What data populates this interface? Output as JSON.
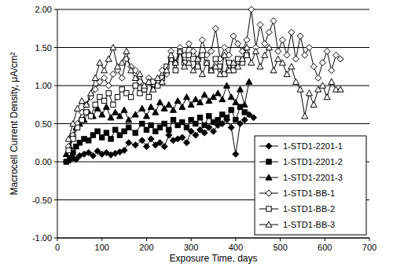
{
  "chart_data": {
    "type": "line",
    "x_label": "Exposure Time, days",
    "y_label": "Macrocell Current Density, μA/cm²",
    "xlim": [
      0,
      700
    ],
    "xticks": [
      0,
      100,
      200,
      300,
      400,
      500,
      600,
      700
    ],
    "ylim": [
      -1,
      2
    ],
    "yticks": [
      {
        "value": -1,
        "label": "-1.00"
      },
      {
        "value": -0.5,
        "label": "-0.50"
      },
      {
        "value": 0,
        "label": "0.00"
      },
      {
        "value": 0.5,
        "label": "0.50"
      },
      {
        "value": 1,
        "label": "1.00"
      },
      {
        "value": 1.5,
        "label": "1.50"
      },
      {
        "value": 2,
        "label": "2.00"
      }
    ],
    "grid": true,
    "legend": "lower right",
    "series": [
      {
        "name": "1-STD1-2201-1",
        "color": "#000000",
        "marker": "diamond",
        "line_style": "solid",
        "x": [
          20,
          28,
          35,
          42,
          50,
          60,
          70,
          80,
          90,
          100,
          110,
          120,
          130,
          140,
          150,
          160,
          175,
          190,
          200,
          210,
          220,
          230,
          240,
          250,
          260,
          270,
          280,
          290,
          300,
          310,
          320,
          330,
          340,
          350,
          360,
          370,
          380,
          390,
          400,
          410,
          420,
          430,
          440
        ],
        "values": [
          0.0,
          0.02,
          0.05,
          0.03,
          0.08,
          0.1,
          0.12,
          0.08,
          0.14,
          0.1,
          0.12,
          0.09,
          0.11,
          0.13,
          0.15,
          0.25,
          0.22,
          0.28,
          0.2,
          0.3,
          0.22,
          0.25,
          0.2,
          0.35,
          0.28,
          0.3,
          0.32,
          0.25,
          0.4,
          0.35,
          0.42,
          0.38,
          0.45,
          0.4,
          0.48,
          0.5,
          0.55,
          0.45,
          0.1,
          0.5,
          0.55,
          0.62,
          0.58
        ]
      },
      {
        "name": "1-STD1-2201-2",
        "color": "#000000",
        "marker": "square",
        "line_style": "solid",
        "x": [
          20,
          28,
          35,
          42,
          50,
          60,
          70,
          80,
          90,
          100,
          110,
          120,
          130,
          140,
          150,
          160,
          175,
          190,
          200,
          210,
          220,
          230,
          240,
          250,
          260,
          270,
          280,
          290,
          300,
          310,
          320,
          330,
          340,
          350,
          360,
          370,
          380,
          390,
          400,
          410,
          420
        ],
        "values": [
          0.0,
          0.05,
          0.12,
          0.2,
          0.25,
          0.3,
          0.28,
          0.35,
          0.4,
          0.32,
          0.38,
          0.3,
          0.42,
          0.35,
          0.4,
          0.45,
          0.38,
          0.5,
          0.42,
          0.48,
          0.4,
          0.45,
          0.5,
          0.42,
          0.55,
          0.48,
          0.52,
          0.45,
          0.55,
          0.5,
          0.58,
          0.48,
          0.6,
          0.52,
          0.55,
          0.62,
          0.58,
          0.68,
          0.55,
          0.72,
          0.65
        ]
      },
      {
        "name": "1-STD1-2201-3",
        "color": "#000000",
        "marker": "triangle",
        "line_style": "solid",
        "x": [
          20,
          28,
          35,
          42,
          50,
          60,
          70,
          80,
          90,
          100,
          110,
          120,
          130,
          140,
          150,
          160,
          175,
          190,
          200,
          210,
          220,
          230,
          240,
          250,
          260,
          270,
          280,
          290,
          300,
          310,
          320,
          330,
          340,
          350,
          360,
          370,
          380,
          390,
          400,
          410,
          420,
          430
        ],
        "values": [
          0.1,
          0.2,
          0.35,
          0.45,
          0.5,
          0.55,
          0.65,
          0.6,
          0.7,
          0.62,
          0.72,
          0.58,
          0.65,
          0.6,
          0.68,
          0.55,
          0.62,
          0.7,
          0.6,
          0.72,
          0.65,
          0.78,
          0.7,
          0.75,
          0.68,
          0.8,
          0.72,
          0.85,
          0.75,
          0.82,
          0.78,
          0.88,
          0.8,
          0.85,
          0.9,
          0.82,
          1.0,
          0.85,
          0.78,
          0.95,
          0.75,
          1.05
        ]
      },
      {
        "name": "1-STD1-BB-1",
        "color": "#000000",
        "marker": "diamond-open",
        "line_style": "solid",
        "x": [
          25,
          35,
          45,
          55,
          65,
          75,
          85,
          95,
          105,
          115,
          125,
          135,
          145,
          155,
          165,
          175,
          185,
          195,
          205,
          215,
          225,
          235,
          245,
          255,
          265,
          275,
          285,
          295,
          305,
          315,
          325,
          335,
          345,
          355,
          365,
          375,
          385,
          395,
          405,
          415,
          425,
          435,
          445,
          455,
          465,
          475,
          485,
          495,
          505,
          515,
          525,
          535,
          545,
          555,
          565,
          575,
          585,
          595,
          605,
          615,
          625,
          635
        ],
        "values": [
          0.2,
          0.35,
          0.5,
          0.65,
          0.75,
          0.85,
          0.95,
          1.05,
          1.1,
          1.0,
          1.15,
          1.2,
          1.1,
          1.35,
          1.25,
          1.2,
          1.05,
          0.95,
          1.1,
          1.0,
          1.05,
          1.2,
          1.15,
          1.45,
          1.3,
          1.5,
          1.4,
          1.55,
          1.45,
          1.35,
          1.6,
          1.4,
          1.45,
          1.75,
          1.35,
          1.5,
          1.4,
          1.65,
          1.55,
          1.45,
          1.6,
          2.0,
          1.5,
          1.8,
          1.55,
          1.7,
          1.85,
          1.45,
          1.6,
          1.4,
          1.7,
          1.35,
          1.65,
          1.4,
          1.5,
          1.25,
          1.1,
          1.3,
          1.45,
          1.2,
          1.4,
          1.35
        ]
      },
      {
        "name": "1-STD1-BB-2",
        "color": "#000000",
        "marker": "square-open",
        "line_style": "solid",
        "x": [
          25,
          35,
          45,
          55,
          65,
          75,
          85,
          95,
          105,
          115,
          125,
          135,
          145,
          155,
          165,
          175,
          185,
          195,
          205,
          215,
          225,
          235,
          245,
          255,
          265,
          275,
          285,
          295,
          305,
          315,
          325,
          335,
          345,
          355,
          365,
          375,
          385,
          395,
          405,
          415,
          425
        ],
        "values": [
          0.15,
          0.3,
          0.45,
          0.55,
          0.65,
          0.6,
          0.75,
          0.85,
          0.8,
          0.9,
          0.75,
          0.85,
          0.95,
          0.9,
          0.85,
          1.0,
          0.9,
          0.95,
          0.85,
          1.05,
          1.0,
          1.1,
          1.25,
          1.35,
          1.2,
          1.45,
          1.3,
          1.4,
          1.35,
          1.25,
          1.4,
          1.3,
          1.2,
          1.35,
          1.25,
          1.15,
          1.3,
          1.2,
          1.35,
          1.3,
          1.4
        ]
      },
      {
        "name": "1-STD1-BB-3",
        "color": "#000000",
        "marker": "triangle-open",
        "line_style": "solid",
        "x": [
          25,
          35,
          45,
          55,
          65,
          75,
          85,
          95,
          105,
          115,
          125,
          135,
          145,
          155,
          165,
          175,
          185,
          195,
          205,
          215,
          225,
          235,
          245,
          255,
          265,
          275,
          285,
          295,
          305,
          315,
          325,
          335,
          345,
          355,
          365,
          375,
          385,
          395,
          405,
          415,
          425,
          435,
          445,
          455,
          465,
          475,
          485,
          495,
          505,
          515,
          525,
          535,
          545,
          555,
          565,
          575,
          585,
          595,
          605,
          615,
          625,
          635
        ],
        "values": [
          0.3,
          0.5,
          0.7,
          0.8,
          0.75,
          0.9,
          1.1,
          1.3,
          1.2,
          1.35,
          1.5,
          1.25,
          1.3,
          1.45,
          1.2,
          1.1,
          1.15,
          1.0,
          1.05,
          0.95,
          1.1,
          1.05,
          1.2,
          1.4,
          1.3,
          1.45,
          1.25,
          1.3,
          1.2,
          1.35,
          1.15,
          1.3,
          1.2,
          1.25,
          1.15,
          1.4,
          1.2,
          1.3,
          1.25,
          1.35,
          1.5,
          1.3,
          1.45,
          1.25,
          1.4,
          1.5,
          1.2,
          1.35,
          1.3,
          1.15,
          1.25,
          1.05,
          0.95,
          0.6,
          0.9,
          0.75,
          0.95,
          1.0,
          0.85,
          1.05,
          0.95,
          0.95
        ]
      }
    ]
  }
}
